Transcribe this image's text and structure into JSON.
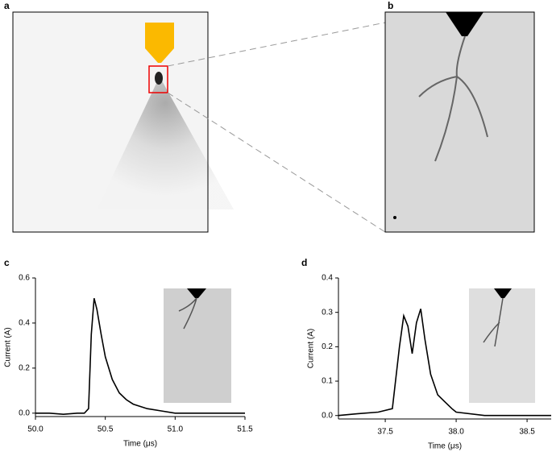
{
  "panels": {
    "a": "a",
    "b": "b"
  },
  "chart_data": [
    {
      "type": "line",
      "panel_label": "c",
      "x_label": "Time (μs)",
      "y_label": "Current (A)",
      "color": "#000000",
      "x": [
        50.0,
        50.1,
        50.2,
        50.3,
        50.35,
        50.38,
        50.4,
        50.42,
        50.44,
        50.47,
        50.5,
        50.55,
        50.6,
        50.65,
        50.7,
        50.8,
        50.9,
        51.0,
        51.2,
        51.5
      ],
      "values": [
        0.0,
        0.0,
        -0.005,
        0.0,
        0.0,
        0.02,
        0.35,
        0.51,
        0.46,
        0.35,
        0.25,
        0.15,
        0.09,
        0.06,
        0.04,
        0.02,
        0.01,
        0.0,
        0.0,
        0.0
      ],
      "xlim": [
        50.0,
        51.5
      ],
      "ylim": [
        -0.015,
        0.6
      ],
      "xticks": [
        {
          "value": 50.0,
          "label": "50.0"
        },
        50.5,
        {
          "value": 51.0,
          "label": "51.0"
        },
        51.5
      ],
      "yticks": [
        {
          "value": 0,
          "label": "0.0"
        },
        0.2,
        0.4,
        0.6
      ]
    },
    {
      "type": "line",
      "panel_label": "d",
      "x_label": "Time (μs)",
      "y_label": "Current (A)",
      "color": "#000000",
      "x": [
        37.17,
        37.3,
        37.45,
        37.55,
        37.6,
        37.63,
        37.66,
        37.69,
        37.72,
        37.75,
        37.78,
        37.82,
        37.87,
        37.92,
        37.97,
        38.0,
        38.2,
        38.5,
        38.67
      ],
      "values": [
        0.0,
        0.005,
        0.01,
        0.02,
        0.2,
        0.29,
        0.26,
        0.18,
        0.27,
        0.31,
        0.22,
        0.12,
        0.06,
        0.04,
        0.02,
        0.01,
        0.0,
        0.0,
        0.0
      ],
      "xlim": [
        37.17,
        38.67
      ],
      "ylim": [
        -0.01,
        0.4
      ],
      "xticks": [
        37.5,
        {
          "value": 38.0,
          "label": "38.0"
        },
        38.5
      ],
      "yticks": [
        {
          "value": 0,
          "label": "0.0"
        },
        0.1,
        0.2,
        0.3,
        0.4
      ]
    }
  ]
}
